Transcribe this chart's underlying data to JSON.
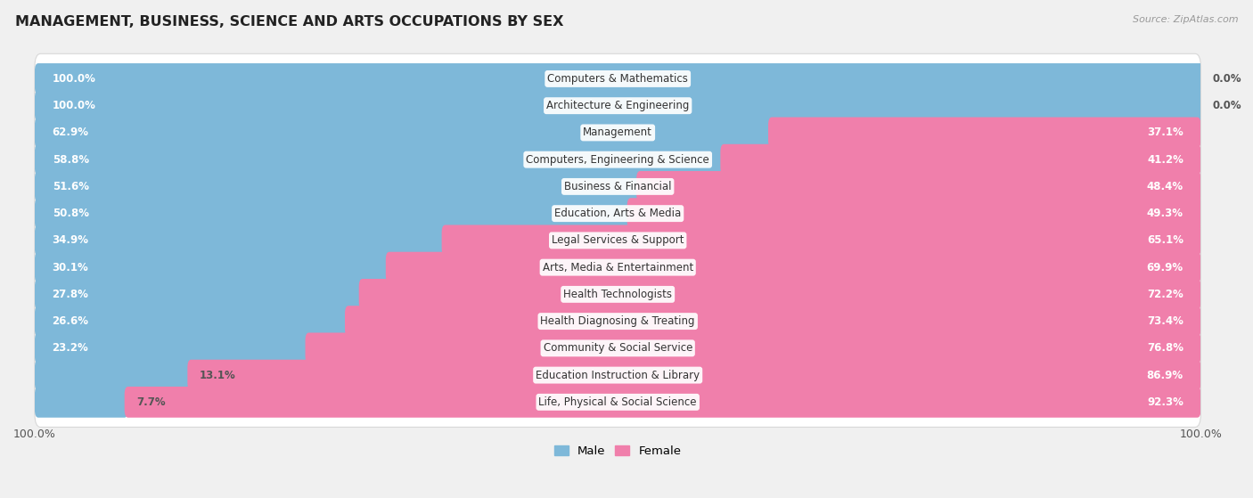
{
  "title": "MANAGEMENT, BUSINESS, SCIENCE AND ARTS OCCUPATIONS BY SEX",
  "source": "Source: ZipAtlas.com",
  "categories": [
    "Computers & Mathematics",
    "Architecture & Engineering",
    "Management",
    "Computers, Engineering & Science",
    "Business & Financial",
    "Education, Arts & Media",
    "Legal Services & Support",
    "Arts, Media & Entertainment",
    "Health Technologists",
    "Health Diagnosing & Treating",
    "Community & Social Service",
    "Education Instruction & Library",
    "Life, Physical & Social Science"
  ],
  "male_pct": [
    100.0,
    100.0,
    62.9,
    58.8,
    51.6,
    50.8,
    34.9,
    30.1,
    27.8,
    26.6,
    23.2,
    13.1,
    7.7
  ],
  "female_pct": [
    0.0,
    0.0,
    37.1,
    41.2,
    48.4,
    49.3,
    65.1,
    69.9,
    72.2,
    73.4,
    76.8,
    86.9,
    92.3
  ],
  "male_color": "#7eb8d9",
  "female_color": "#f07fab",
  "bg_color": "#f0f0f0",
  "row_bg_color": "#e8e8e8",
  "row_border_color": "#d8d8d8",
  "label_fontsize": 8.5,
  "title_fontsize": 11.5,
  "legend_fontsize": 9.5,
  "source_fontsize": 8.0
}
